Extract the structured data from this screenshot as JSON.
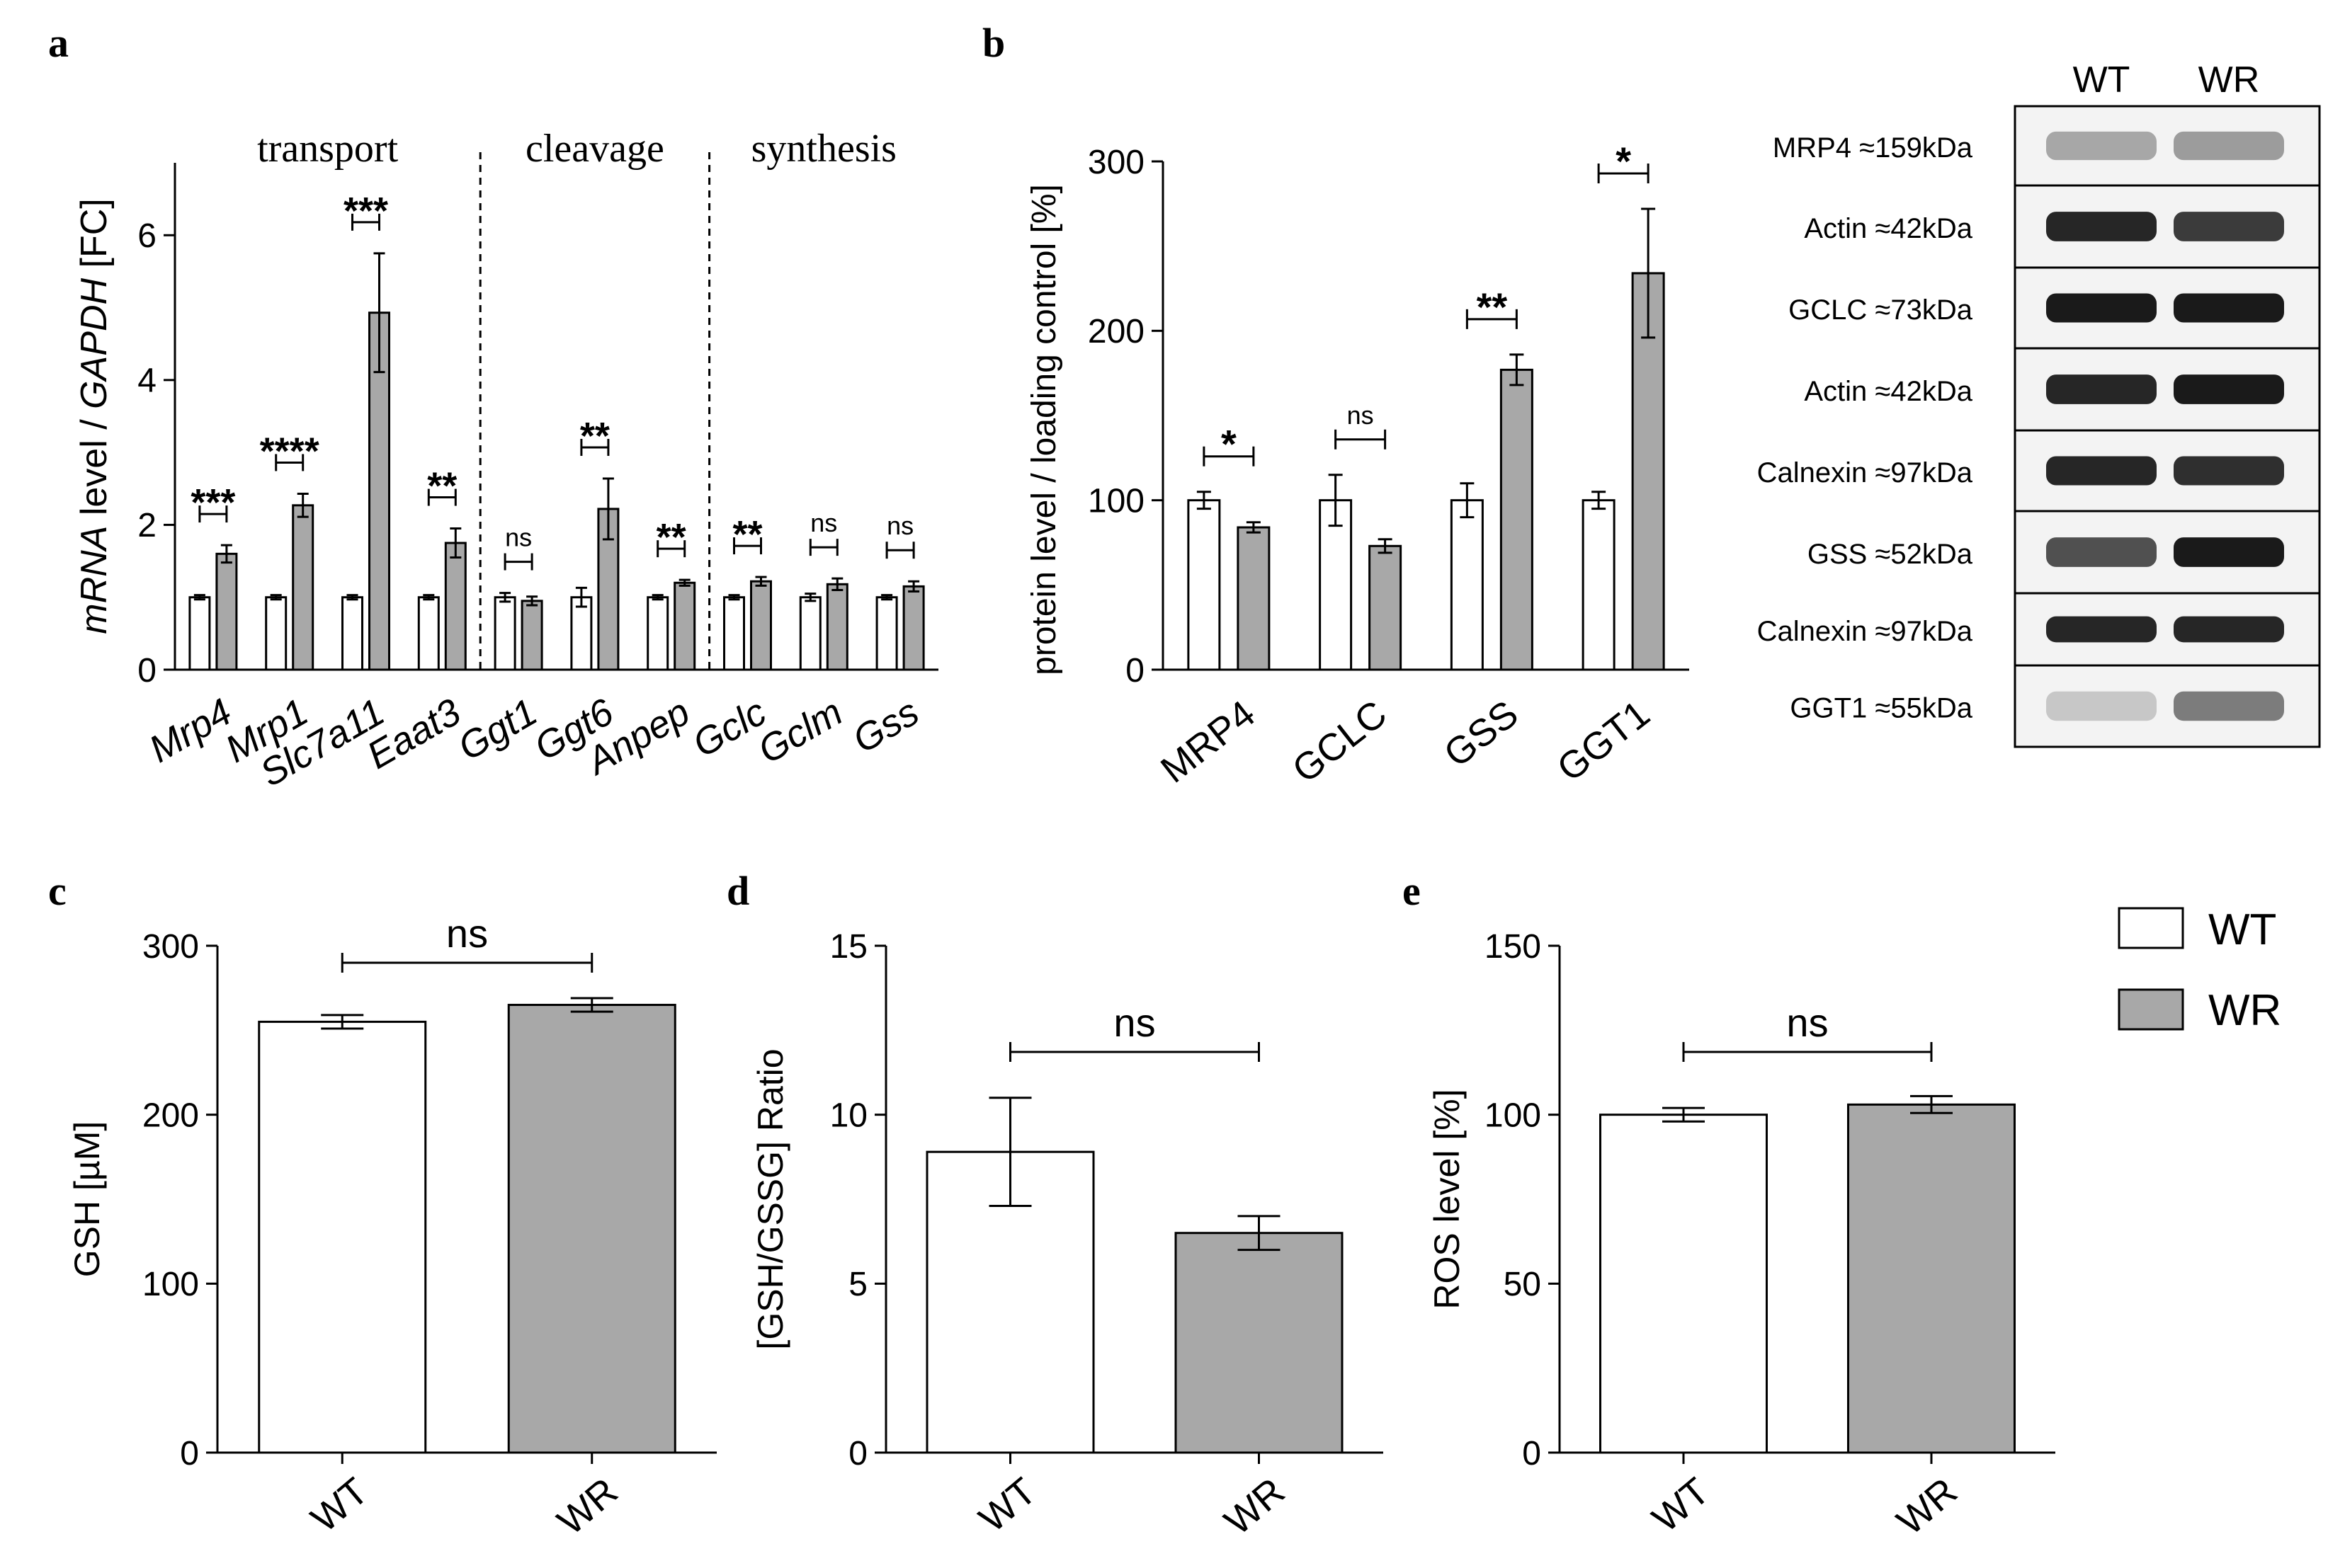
{
  "colors": {
    "wt": "#ffffff",
    "wr": "#a8a8a8",
    "axis": "#000000",
    "blot_bg": "#f3f3f3",
    "band": "#1a1a1a"
  },
  "panel_labels": {
    "a": "a",
    "b": "b",
    "c": "c",
    "d": "d",
    "e": "e"
  },
  "legend": {
    "wt": "WT",
    "wr": "WR"
  },
  "chart_data": [
    {
      "id": "a",
      "type": "bar",
      "ylabel_parts": [
        "mRNA",
        " level / ",
        "GAPDH",
        " [FC]"
      ],
      "ylim": [
        0,
        7
      ],
      "yticks": [
        0,
        2,
        4,
        6
      ],
      "groups": [
        {
          "name": "transport",
          "from": 0,
          "to": 3
        },
        {
          "name": "cleavage",
          "from": 4,
          "to": 6
        },
        {
          "name": "synthesis",
          "from": 7,
          "to": 9
        }
      ],
      "categories": [
        "Mrp4",
        "Mrp1",
        "Slc7a11",
        "Eaat3",
        "Ggt1",
        "Ggt6",
        "Anpep",
        "Gclc",
        "Gclm",
        "Gss"
      ],
      "series": [
        {
          "name": "WT",
          "values": [
            1,
            1,
            1,
            1,
            1,
            1,
            1,
            1,
            1,
            1
          ],
          "errors": [
            0.03,
            0.03,
            0.03,
            0.03,
            0.06,
            0.13,
            0.03,
            0.03,
            0.05,
            0.03
          ]
        },
        {
          "name": "WR",
          "values": [
            1.6,
            2.27,
            4.93,
            1.75,
            0.95,
            2.22,
            1.2,
            1.22,
            1.18,
            1.15
          ],
          "errors": [
            0.12,
            0.16,
            0.82,
            0.2,
            0.06,
            0.42,
            0.04,
            0.06,
            0.08,
            0.07
          ]
        }
      ],
      "significance": [
        "***",
        "****",
        "***",
        "**",
        "ns",
        "**",
        "**",
        "**",
        "ns",
        "ns"
      ]
    },
    {
      "id": "b",
      "type": "bar",
      "ylabel": "protein level / loading control [%]",
      "ylim": [
        0,
        300
      ],
      "yticks": [
        0,
        100,
        200,
        300
      ],
      "categories": [
        "MRP4",
        "GCLC",
        "GSS",
        "GGT1"
      ],
      "series": [
        {
          "name": "WT",
          "values": [
            100,
            100,
            100,
            100
          ],
          "errors": [
            5,
            15,
            10,
            5
          ]
        },
        {
          "name": "WR",
          "values": [
            84,
            73,
            177,
            234
          ],
          "errors": [
            3,
            4,
            9,
            38
          ]
        }
      ],
      "significance": [
        "*",
        "ns",
        "**",
        "*"
      ]
    },
    {
      "id": "c",
      "type": "bar",
      "ylabel": "GSH [µM]",
      "ylim": [
        0,
        300
      ],
      "yticks": [
        0,
        100,
        200,
        300
      ],
      "categories": [
        "WT",
        "WR"
      ],
      "values": [
        255,
        265
      ],
      "errors": [
        4,
        4
      ],
      "significance": "ns"
    },
    {
      "id": "d",
      "type": "bar",
      "ylabel": "[GSH/GSSG] Ratio",
      "ylim": [
        0,
        15
      ],
      "yticks": [
        0,
        5,
        10,
        15
      ],
      "categories": [
        "WT",
        "WR"
      ],
      "values": [
        8.9,
        6.5
      ],
      "errors": [
        1.6,
        0.5
      ],
      "significance": "ns"
    },
    {
      "id": "e",
      "type": "bar",
      "ylabel": "ROS level [%]",
      "ylim": [
        0,
        150
      ],
      "yticks": [
        0,
        50,
        100,
        150
      ],
      "categories": [
        "WT",
        "WR"
      ],
      "values": [
        100,
        103
      ],
      "errors": [
        2,
        2.5
      ],
      "significance": "ns"
    }
  ],
  "western_blot": {
    "lane_labels": [
      "WT",
      "WR"
    ],
    "rows": [
      {
        "label": "MRP4 ≈159kDa",
        "wt": 0.35,
        "wr": 0.4
      },
      {
        "label": "Actin ≈42kDa",
        "wt": 0.95,
        "wr": 0.85
      },
      {
        "label": "GCLC ≈73kDa",
        "wt": 1.0,
        "wr": 1.0
      },
      {
        "label": "Actin ≈42kDa",
        "wt": 0.95,
        "wr": 1.0
      },
      {
        "label": "Calnexin ≈97kDa",
        "wt": 0.95,
        "wr": 0.9
      },
      {
        "label": "GSS ≈52kDa",
        "wt": 0.75,
        "wr": 1.0
      },
      {
        "label": "Calnexin ≈97kDa",
        "wt": 0.95,
        "wr": 0.95
      },
      {
        "label": "GGT1 ≈55kDa",
        "wt": 0.2,
        "wr": 0.55
      }
    ]
  }
}
